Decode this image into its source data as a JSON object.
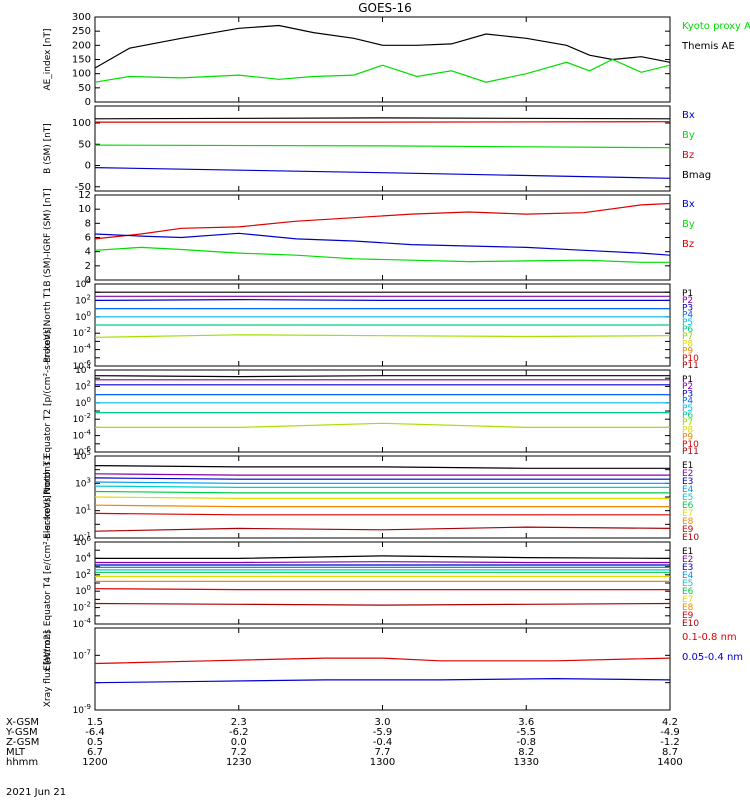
{
  "title": "GOES-16",
  "date_label": "2021 Jun 21",
  "footer": {
    "row_labels": [
      "X-GSM",
      "Y-GSM",
      "Z-GSM",
      "MLT",
      "hhmm"
    ],
    "columns": [
      {
        "values": [
          "1.5",
          "-6.4",
          "0.5",
          "6.7",
          "1200"
        ]
      },
      {
        "values": [
          "2.3",
          "-6.2",
          "0.0",
          "7.2",
          "1230"
        ]
      },
      {
        "values": [
          "3.0",
          "-5.9",
          "-0.4",
          "7.7",
          "1300"
        ]
      },
      {
        "values": [
          "3.6",
          "-5.5",
          "-0.8",
          "8.2",
          "1330"
        ]
      },
      {
        "values": [
          "4.2",
          "-4.9",
          "-1.2",
          "8.7",
          "1400"
        ]
      }
    ]
  },
  "chart_data": [
    {
      "type": "line",
      "ylabel": "AE_index [nT]",
      "ylim": [
        0,
        300
      ],
      "yticks": [
        "0",
        "50",
        "100",
        "150",
        "200",
        "250",
        "300"
      ],
      "legend": [
        {
          "name": "Kyoto proxy AE",
          "color": "#00dd00"
        },
        {
          "name": "Themis AE",
          "color": "#000000"
        }
      ],
      "x": [
        0,
        0.06,
        0.15,
        0.25,
        0.32,
        0.38,
        0.45,
        0.5,
        0.56,
        0.62,
        0.68,
        0.75,
        0.82,
        0.86,
        0.9,
        0.95,
        1
      ],
      "series": [
        {
          "name": "Themis AE",
          "color": "#000000",
          "values": [
            120,
            190,
            225,
            260,
            270,
            245,
            225,
            200,
            200,
            205,
            240,
            225,
            200,
            165,
            150,
            160,
            140
          ]
        },
        {
          "name": "Kyoto proxy AE",
          "color": "#00dd00",
          "values": [
            70,
            90,
            85,
            95,
            80,
            90,
            95,
            130,
            90,
            110,
            70,
            100,
            140,
            110,
            150,
            105,
            130
          ]
        }
      ]
    },
    {
      "type": "line",
      "ylabel": "B (SM) [nT]",
      "ylim": [
        -60,
        140
      ],
      "yticks": [
        "-50",
        "0",
        "50",
        "100"
      ],
      "legend": [
        {
          "name": "Bx",
          "color": "#0000cc"
        },
        {
          "name": "By",
          "color": "#00dd00"
        },
        {
          "name": "Bz",
          "color": "#dd0000"
        },
        {
          "name": "Bmag",
          "color": "#000000"
        }
      ],
      "x": [
        0,
        0.5,
        1
      ],
      "series": [
        {
          "name": "Bmag",
          "color": "#000000",
          "values": [
            110,
            112,
            110
          ]
        },
        {
          "name": "Bz",
          "color": "#dd0000",
          "values": [
            102,
            102,
            103
          ]
        },
        {
          "name": "By",
          "color": "#00dd00",
          "values": [
            48,
            46,
            42
          ]
        },
        {
          "name": "Bx",
          "color": "#0000cc",
          "values": [
            -5,
            -17,
            -30
          ]
        }
      ]
    },
    {
      "type": "line",
      "ylabel": "B (SM)-IGRF (SM) [nT]",
      "ylim": [
        0,
        12
      ],
      "yticks": [
        "0",
        "2",
        "4",
        "6",
        "8",
        "10",
        "12"
      ],
      "legend": [
        {
          "name": "Bx",
          "color": "#0000cc"
        },
        {
          "name": "By",
          "color": "#00dd00"
        },
        {
          "name": "Bz",
          "color": "#dd0000"
        }
      ],
      "x": [
        0,
        0.08,
        0.15,
        0.25,
        0.35,
        0.45,
        0.55,
        0.65,
        0.75,
        0.85,
        0.95,
        1
      ],
      "series": [
        {
          "name": "Bz",
          "color": "#dd0000",
          "values": [
            5.8,
            6.5,
            7.3,
            7.5,
            8.3,
            8.8,
            9.3,
            9.6,
            9.3,
            9.5,
            10.6,
            10.8
          ]
        },
        {
          "name": "Bx",
          "color": "#0000cc",
          "values": [
            6.5,
            6.2,
            6.0,
            6.6,
            5.8,
            5.5,
            5.0,
            4.8,
            4.6,
            4.2,
            3.8,
            3.5
          ]
        },
        {
          "name": "By",
          "color": "#00dd00",
          "values": [
            4.2,
            4.6,
            4.3,
            3.8,
            3.5,
            3.0,
            2.8,
            2.6,
            2.7,
            2.8,
            2.5,
            2.5
          ]
        }
      ]
    },
    {
      "type": "line",
      "ylabel": "Protons North T1",
      "ylim": [
        -6,
        4
      ],
      "log": true,
      "legend": [
        {
          "name": "P1",
          "color": "#000000"
        },
        {
          "name": "P2",
          "color": "#8800aa"
        },
        {
          "name": "P3",
          "color": "#0000cc"
        },
        {
          "name": "P4",
          "color": "#0066ff"
        },
        {
          "name": "P5",
          "color": "#00bbee"
        },
        {
          "name": "P6",
          "color": "#00cc88"
        },
        {
          "name": "P7",
          "color": "#88dd00"
        },
        {
          "name": "P8",
          "color": "#dddd00"
        },
        {
          "name": "P9",
          "color": "#ee8800"
        },
        {
          "name": "P10",
          "color": "#dd0000"
        },
        {
          "name": "P11",
          "color": "#aa0000"
        }
      ],
      "x": [
        0,
        0.25,
        0.5,
        0.75,
        1
      ],
      "series": [
        {
          "name": "P1",
          "color": "#000000",
          "values": [
            3.0,
            3.0,
            3.0,
            3.0,
            3.0
          ]
        },
        {
          "name": "P2",
          "color": "#8800aa",
          "values": [
            2.5,
            2.5,
            2.5,
            2.5,
            2.5
          ]
        },
        {
          "name": "P3",
          "color": "#0000cc",
          "values": [
            2.0,
            2.1,
            2.0,
            2.0,
            2.0
          ]
        },
        {
          "name": "P4",
          "color": "#0066ff",
          "values": [
            1.0,
            1.0,
            1.0,
            1.0,
            1.0
          ]
        },
        {
          "name": "P5",
          "color": "#00bbee",
          "values": [
            0,
            0,
            0,
            0,
            0
          ]
        },
        {
          "name": "P6",
          "color": "#00cc88",
          "values": [
            -1.0,
            -1.0,
            -1.0,
            -1.0,
            -1.0
          ]
        },
        {
          "name": "P7",
          "color": "#aadd00",
          "values": [
            -2.5,
            -2.2,
            -2.3,
            -2.4,
            -2.3
          ]
        }
      ]
    },
    {
      "type": "line",
      "ylabel": "Protons Equator T2 [p/(cm²-s-sr-keV)]",
      "ylim": [
        -6,
        4
      ],
      "log": true,
      "legend": [
        {
          "name": "P1",
          "color": "#000000"
        },
        {
          "name": "P2",
          "color": "#8800aa"
        },
        {
          "name": "P3",
          "color": "#0000cc"
        },
        {
          "name": "P4",
          "color": "#0066ff"
        },
        {
          "name": "P5",
          "color": "#00bbee"
        },
        {
          "name": "P6",
          "color": "#00cc88"
        },
        {
          "name": "P7",
          "color": "#88dd00"
        },
        {
          "name": "P8",
          "color": "#dddd00"
        },
        {
          "name": "P9",
          "color": "#ee8800"
        },
        {
          "name": "P10",
          "color": "#dd0000"
        },
        {
          "name": "P11",
          "color": "#aa0000"
        }
      ],
      "x": [
        0,
        0.25,
        0.5,
        0.75,
        1
      ],
      "series": [
        {
          "name": "P1",
          "color": "#000000",
          "values": [
            3.3,
            3.2,
            3.3,
            3.3,
            3.3
          ]
        },
        {
          "name": "P2",
          "color": "#8800aa",
          "values": [
            2.8,
            2.8,
            2.8,
            2.8,
            2.8
          ]
        },
        {
          "name": "P3",
          "color": "#0000cc",
          "values": [
            2.2,
            2.2,
            2.2,
            2.2,
            2.2
          ]
        },
        {
          "name": "P4",
          "color": "#0066ff",
          "values": [
            1.0,
            1.0,
            1.0,
            1.0,
            1.0
          ]
        },
        {
          "name": "P5",
          "color": "#00bbee",
          "values": [
            0,
            0,
            0,
            0,
            0
          ]
        },
        {
          "name": "P6",
          "color": "#00cc88",
          "values": [
            -1.2,
            -1.2,
            -1.2,
            -1.2,
            -1.2
          ]
        },
        {
          "name": "P7",
          "color": "#aadd00",
          "values": [
            -3.0,
            -3.0,
            -2.5,
            -3.0,
            -3.0
          ]
        }
      ]
    },
    {
      "type": "line",
      "ylabel": "Electrons North T3",
      "ylim": [
        -1,
        5
      ],
      "log": true,
      "legend": [
        {
          "name": "E1",
          "color": "#000000"
        },
        {
          "name": "E2",
          "color": "#8800aa"
        },
        {
          "name": "E3",
          "color": "#0000cc"
        },
        {
          "name": "E4",
          "color": "#0099ee"
        },
        {
          "name": "E5",
          "color": "#00cccc"
        },
        {
          "name": "E6",
          "color": "#00cc44"
        },
        {
          "name": "E7",
          "color": "#dddd00"
        },
        {
          "name": "E8",
          "color": "#ee8800"
        },
        {
          "name": "E9",
          "color": "#dd0000"
        },
        {
          "name": "E10",
          "color": "#aa0000"
        }
      ],
      "x": [
        0,
        0.25,
        0.5,
        0.75,
        1
      ],
      "series": [
        {
          "name": "E1",
          "color": "#000000",
          "values": [
            4.3,
            4.2,
            4.2,
            4.1,
            4.1
          ]
        },
        {
          "name": "E2",
          "color": "#8800aa",
          "values": [
            3.7,
            3.6,
            3.6,
            3.6,
            3.6
          ]
        },
        {
          "name": "E3",
          "color": "#0000cc",
          "values": [
            3.4,
            3.3,
            3.3,
            3.3,
            3.3
          ]
        },
        {
          "name": "E4",
          "color": "#0099ee",
          "values": [
            3.1,
            3.0,
            3.0,
            3.0,
            3.0
          ]
        },
        {
          "name": "E5",
          "color": "#00cccc",
          "values": [
            2.8,
            2.7,
            2.7,
            2.7,
            2.7
          ]
        },
        {
          "name": "E6",
          "color": "#00cc44",
          "values": [
            2.4,
            2.3,
            2.3,
            2.3,
            2.3
          ]
        },
        {
          "name": "E7",
          "color": "#dddd00",
          "values": [
            2.0,
            1.9,
            1.9,
            1.9,
            1.9
          ]
        },
        {
          "name": "E8",
          "color": "#ee8800",
          "values": [
            1.4,
            1.3,
            1.3,
            1.3,
            1.3
          ]
        },
        {
          "name": "E9",
          "color": "#dd0000",
          "values": [
            0.8,
            0.7,
            0.7,
            0.7,
            0.7
          ]
        },
        {
          "name": "E10",
          "color": "#aa0000",
          "values": [
            -0.5,
            -0.3,
            -0.4,
            -0.2,
            -0.3
          ]
        }
      ]
    },
    {
      "type": "line",
      "ylabel": "Electrons Equator T4 [e/(cm²-s-sr-keV)]",
      "ylim": [
        -4,
        6
      ],
      "log": true,
      "legend": [
        {
          "name": "E1",
          "color": "#000000"
        },
        {
          "name": "E2",
          "color": "#8800aa"
        },
        {
          "name": "E3",
          "color": "#0000cc"
        },
        {
          "name": "E4",
          "color": "#0099ee"
        },
        {
          "name": "E5",
          "color": "#00cccc"
        },
        {
          "name": "E6",
          "color": "#00cc44"
        },
        {
          "name": "E7",
          "color": "#dddd00"
        },
        {
          "name": "E8",
          "color": "#ee8800"
        },
        {
          "name": "E9",
          "color": "#dd0000"
        },
        {
          "name": "E10",
          "color": "#aa0000"
        }
      ],
      "x": [
        0,
        0.25,
        0.5,
        0.75,
        1
      ],
      "series": [
        {
          "name": "E1",
          "color": "#000000",
          "values": [
            4.0,
            4.0,
            4.3,
            4.1,
            4.0
          ]
        },
        {
          "name": "E2",
          "color": "#8800aa",
          "values": [
            3.5,
            3.5,
            3.6,
            3.5,
            3.5
          ]
        },
        {
          "name": "E3",
          "color": "#0000cc",
          "values": [
            3.2,
            3.2,
            3.2,
            3.2,
            3.2
          ]
        },
        {
          "name": "E4",
          "color": "#0099ee",
          "values": [
            2.9,
            2.9,
            2.9,
            2.9,
            2.9
          ]
        },
        {
          "name": "E5",
          "color": "#00cccc",
          "values": [
            2.6,
            2.6,
            2.6,
            2.6,
            2.6
          ]
        },
        {
          "name": "E6",
          "color": "#00cc44",
          "values": [
            2.3,
            2.3,
            2.3,
            2.3,
            2.3
          ]
        },
        {
          "name": "E7",
          "color": "#dddd00",
          "values": [
            1.8,
            1.8,
            1.8,
            1.8,
            1.8
          ]
        },
        {
          "name": "E8",
          "color": "#ee8800",
          "values": [
            1.2,
            1.2,
            1.2,
            1.2,
            1.2
          ]
        },
        {
          "name": "E9",
          "color": "#dd0000",
          "values": [
            0.3,
            0.2,
            0.2,
            0.2,
            0.2
          ]
        },
        {
          "name": "E10",
          "color": "#aa0000",
          "values": [
            -1.5,
            -1.6,
            -1.7,
            -1.6,
            -1.5
          ]
        }
      ]
    },
    {
      "type": "line",
      "ylabel": "Xray flux [W/m2]",
      "ylim": [
        -9,
        -6
      ],
      "log": true,
      "legend": [
        {
          "name": "0.1-0.8 nm",
          "color": "#dd0000"
        },
        {
          "name": "0.05-0.4 nm",
          "color": "#0000cc"
        }
      ],
      "x": [
        0,
        0.2,
        0.4,
        0.5,
        0.6,
        0.8,
        1
      ],
      "series": [
        {
          "name": "0.1-0.8 nm",
          "color": "#dd0000",
          "values": [
            -7.3,
            -7.2,
            -7.1,
            -7.1,
            -7.2,
            -7.2,
            -7.1
          ]
        },
        {
          "name": "0.05-0.4 nm",
          "color": "#0000cc",
          "values": [
            -8.0,
            -7.95,
            -7.9,
            -7.9,
            -7.9,
            -7.85,
            -7.9
          ]
        }
      ]
    }
  ]
}
